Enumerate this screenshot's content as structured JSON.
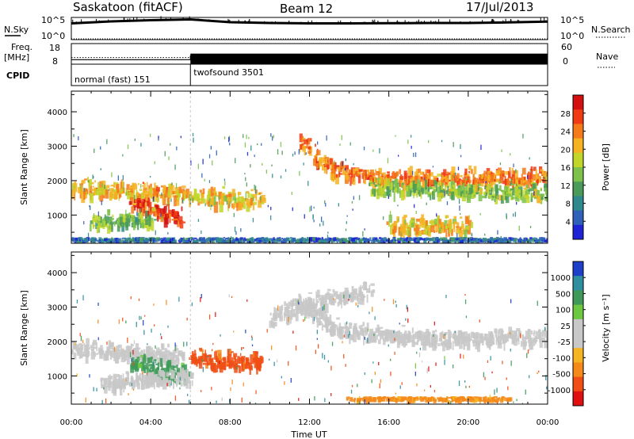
{
  "header": {
    "station": "Saskatoon (fitACF)",
    "beam": "Beam 12",
    "date": "17/Jul/2013"
  },
  "noise_panel": {
    "left_label": "N.Sky",
    "right_label": "N.Search",
    "left_ticks": [
      "10^5",
      "10^0"
    ],
    "right_ticks": [
      "10^5",
      "10^0"
    ]
  },
  "freq_panel": {
    "label_top": "Freq.",
    "label_unit": "[MHz]",
    "left_ticks": [
      "18",
      "8"
    ],
    "right_ticks": [
      "60",
      "0"
    ],
    "right_label": "Nave"
  },
  "cpid_panel": {
    "label": "CPID",
    "modes": [
      {
        "name": "normal (fast) 151",
        "start_hour": 0
      },
      {
        "name": "twofsound 3501",
        "start_hour": 6
      }
    ]
  },
  "range_axis": {
    "label": "Slant Range [km]",
    "ticks": [
      1000,
      2000,
      3000,
      4000
    ],
    "range": [
      180,
      4600
    ]
  },
  "time_axis": {
    "label": "Time UT",
    "ticks": [
      "00:00",
      "04:00",
      "08:00",
      "12:00",
      "16:00",
      "20:00",
      "00:00"
    ],
    "range_hours": [
      0,
      24
    ]
  },
  "power_colorbar": {
    "label": "Power [dB]",
    "ticks": [
      "4",
      "8",
      "12",
      "16",
      "20",
      "24",
      "28"
    ],
    "colors": [
      "#1f23d6",
      "#2f61b8",
      "#2f8a8e",
      "#4a9a5a",
      "#7dc24a",
      "#c2d62a",
      "#f5b322",
      "#f57a1a",
      "#f03a14",
      "#d40f0f"
    ]
  },
  "velocity_colorbar": {
    "label": "Velocity [m s⁻¹]",
    "ticks": [
      "1000",
      "500",
      "100",
      "25",
      "-25",
      "-100",
      "-500",
      "-1000"
    ],
    "colors": [
      "#1e3fc8",
      "#2f8fa0",
      "#3f9a5a",
      "#6cc840",
      "#c8c8c8",
      "#c8c8c8",
      "#f5b522",
      "#f58a1a",
      "#f04e14",
      "#e01010"
    ]
  },
  "chart_data": [
    {
      "type": "line",
      "panel": "noise",
      "series": [
        {
          "name": "N.Sky",
          "x": [
            0,
            2,
            4,
            6,
            8,
            10,
            12,
            14,
            16,
            18,
            20,
            22,
            24
          ],
          "y_log10": [
            4.1,
            4.6,
            4.9,
            5.1,
            4.4,
            4.2,
            4.1,
            4.1,
            4.15,
            4.2,
            4.2,
            4.35,
            4.55
          ]
        },
        {
          "name": "N.Search",
          "x": [
            0,
            24
          ],
          "y_log10": [
            0,
            0
          ]
        }
      ]
    },
    {
      "type": "line",
      "panel": "frequency",
      "series": [
        {
          "name": "Freq.",
          "x": [
            0,
            6,
            6,
            24
          ],
          "y": [
            10.5,
            10.5,
            12.5,
            12.5
          ]
        },
        {
          "name": "Nave",
          "x": [
            0,
            6,
            6,
            24
          ],
          "y": [
            22,
            22,
            25,
            25
          ]
        }
      ]
    },
    {
      "type": "heatmap",
      "panel": "power",
      "title": "Power [dB]",
      "xlabel": "Time UT",
      "ylabel": "Slant Range [km]",
      "xlim": [
        0,
        24
      ],
      "ylim": [
        180,
        4600
      ],
      "zlim": [
        0,
        32
      ],
      "features": [
        {
          "x": [
            0,
            3,
            5.7
          ],
          "y": [
            1650,
            1550,
            1450
          ],
          "z": 21
        },
        {
          "x": [
            3,
            4.5,
            5.5
          ],
          "y": [
            1250,
            950,
            800
          ],
          "z": 27
        },
        {
          "x": [
            1,
            2.5,
            4
          ],
          "y": [
            650,
            700,
            780
          ],
          "z": 14
        },
        {
          "x": [
            6,
            7.5,
            9.5
          ],
          "y": [
            1400,
            1350,
            1300
          ],
          "z": 20
        },
        {
          "x": [
            11.5,
            13,
            15,
            18,
            21,
            24
          ],
          "y": [
            3000,
            2200,
            2000,
            1950,
            1950,
            2000
          ],
          "z": 24
        },
        {
          "x": [
            15,
            19,
            24
          ],
          "y": [
            1650,
            1600,
            1500
          ],
          "z": 15
        },
        {
          "x": [
            16,
            18.5,
            20
          ],
          "y": [
            560,
            520,
            560
          ],
          "z": 20
        },
        {
          "x": [
            0,
            24
          ],
          "y": [
            250,
            250
          ],
          "z": 6
        }
      ]
    },
    {
      "type": "heatmap",
      "panel": "velocity",
      "title": "Velocity [m s⁻¹]",
      "xlabel": "Time UT",
      "ylabel": "Slant Range [km]",
      "xlim": [
        0,
        24
      ],
      "ylim": [
        180,
        4600
      ],
      "zlim": [
        -1000,
        1000
      ],
      "features": [
        {
          "x": [
            0,
            3,
            5.5
          ],
          "y": [
            1650,
            1550,
            1450
          ],
          "v": 0
        },
        {
          "x": [
            3,
            4.5,
            5.8
          ],
          "y": [
            1300,
            1050,
            900
          ],
          "v": 150
        },
        {
          "x": [
            6,
            7.5,
            9.5
          ],
          "y": [
            1450,
            1300,
            1250
          ],
          "v": -400
        },
        {
          "x": [
            1.5,
            4,
            6
          ],
          "y": [
            700,
            750,
            800
          ],
          "v": 0
        },
        {
          "x": [
            11.5,
            13,
            15,
            18,
            21,
            24
          ],
          "y": [
            3000,
            2300,
            2050,
            1950,
            1950,
            2000
          ],
          "v": 0
        },
        {
          "x": [
            10,
            12,
            15
          ],
          "y": [
            2500,
            3000,
            3300
          ],
          "v": 0
        },
        {
          "x": [
            14,
            18,
            22
          ],
          "y": [
            300,
            300,
            300
          ],
          "v": -150
        }
      ]
    }
  ]
}
